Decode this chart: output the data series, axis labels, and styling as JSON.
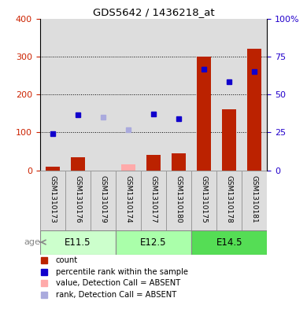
{
  "title": "GDS5642 / 1436218_at",
  "samples": [
    "GSM1310173",
    "GSM1310176",
    "GSM1310179",
    "GSM1310174",
    "GSM1310177",
    "GSM1310180",
    "GSM1310175",
    "GSM1310178",
    "GSM1310181"
  ],
  "age_groups": [
    {
      "label": "E11.5",
      "start": 0,
      "end": 3,
      "color": "#ccffcc"
    },
    {
      "label": "E12.5",
      "start": 3,
      "end": 6,
      "color": "#aaffaa"
    },
    {
      "label": "E14.5",
      "start": 6,
      "end": 9,
      "color": "#55dd55"
    }
  ],
  "count_values": [
    10,
    35,
    0,
    15,
    40,
    45,
    300,
    160,
    320
  ],
  "count_absent": [
    false,
    false,
    true,
    true,
    false,
    false,
    false,
    false,
    false
  ],
  "rank_values": [
    97,
    147,
    140,
    107,
    148,
    136,
    267,
    234,
    260
  ],
  "rank_absent": [
    false,
    false,
    true,
    true,
    false,
    false,
    false,
    false,
    false
  ],
  "ylim_left": [
    0,
    400
  ],
  "yticks_left": [
    0,
    100,
    200,
    300,
    400
  ],
  "yticks_right": [
    0,
    25,
    50,
    75,
    100
  ],
  "ytick_labels_right": [
    "0",
    "25",
    "50",
    "75",
    "100%"
  ],
  "bar_color_present": "#bb2200",
  "bar_color_absent": "#ffaaaa",
  "rank_color_present": "#1100cc",
  "rank_color_absent": "#aaaadd",
  "sample_box_color": "#dddddd",
  "left_tick_color": "#cc2200",
  "right_tick_color": "#2200cc"
}
